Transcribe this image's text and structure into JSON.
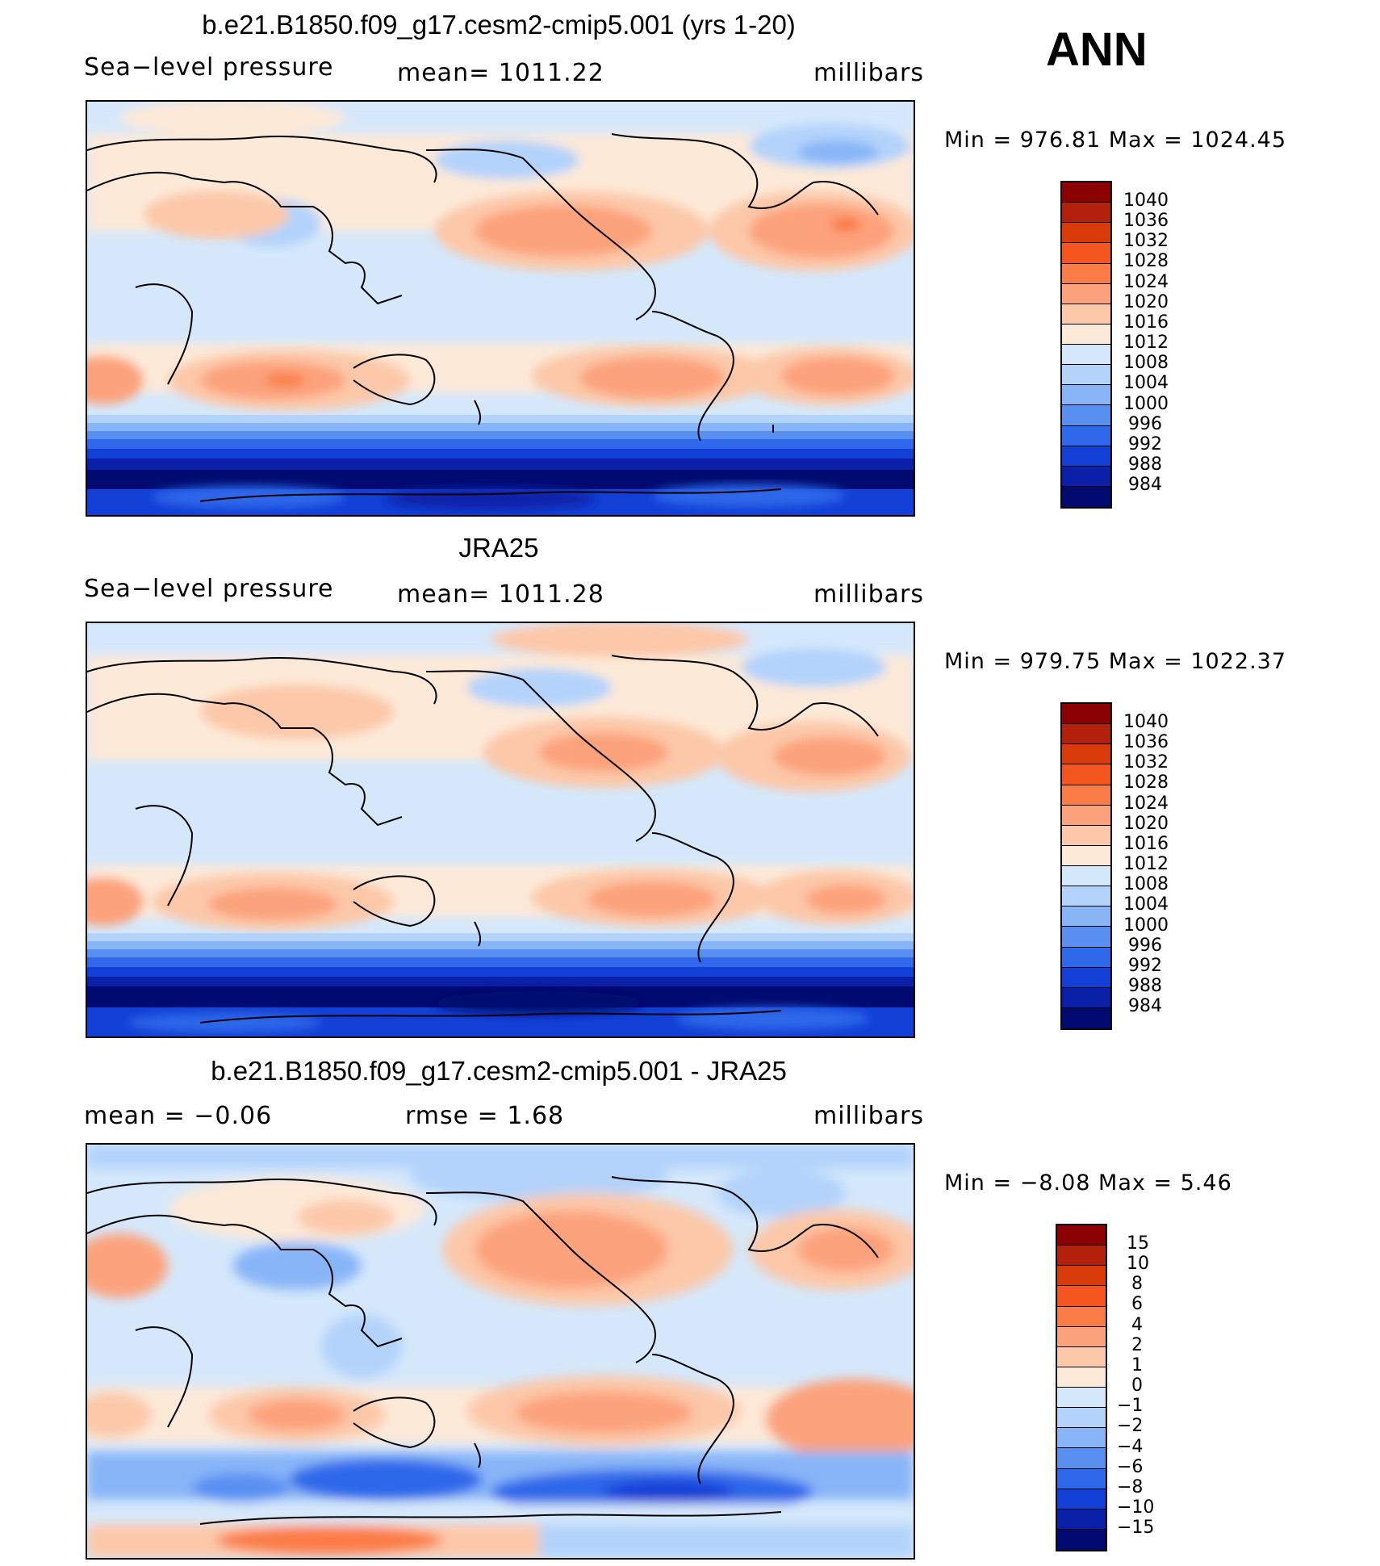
{
  "season": "ANN",
  "panels": [
    {
      "title": "b.e21.B1850.f09_g17.cesm2-cmip5.001 (yrs 1-20)",
      "left_label": "Sea−level pressure",
      "center_label": "mean=  1011.22",
      "right_label": "millibars",
      "min_max": "Min  =  976.81  Max  =  1024.45",
      "colorbar": {
        "levels": [
          "1040",
          "1036",
          "1032",
          "1028",
          "1024",
          "1020",
          "1016",
          "1012",
          "1008",
          "1004",
          "1000",
          "996",
          "992",
          "988",
          "984"
        ],
        "colors": [
          "#8b0000",
          "#b3200b",
          "#d93a0a",
          "#f5551e",
          "#fb7c46",
          "#fca27c",
          "#fcc8a9",
          "#fde9d8",
          "#d5e8fb",
          "#b3d3fb",
          "#88b5f8",
          "#5a8ff2",
          "#2f68ea",
          "#1240d6",
          "#0a20a8",
          "#000a70"
        ]
      }
    },
    {
      "title": "JRA25",
      "left_label": "Sea−level pressure",
      "center_label": "mean=  1011.28",
      "right_label": "millibars",
      "min_max": "Min  =  979.75  Max  =  1022.37",
      "colorbar": {
        "levels": [
          "1040",
          "1036",
          "1032",
          "1028",
          "1024",
          "1020",
          "1016",
          "1012",
          "1008",
          "1004",
          "1000",
          "996",
          "992",
          "988",
          "984"
        ],
        "colors": [
          "#8b0000",
          "#b3200b",
          "#d93a0a",
          "#f5551e",
          "#fb7c46",
          "#fca27c",
          "#fcc8a9",
          "#fde9d8",
          "#d5e8fb",
          "#b3d3fb",
          "#88b5f8",
          "#5a8ff2",
          "#2f68ea",
          "#1240d6",
          "#0a20a8",
          "#000a70"
        ]
      }
    },
    {
      "title": "b.e21.B1850.f09_g17.cesm2-cmip5.001 - JRA25",
      "left_label": "mean  =    −0.06",
      "center_label": "rmse  =     1.68",
      "right_label": "millibars",
      "min_max": "Min  =   −8.08  Max  =      5.46",
      "colorbar": {
        "levels": [
          "15",
          "10",
          "8",
          "6",
          "4",
          "2",
          "1",
          "0",
          "−1",
          "−2",
          "−4",
          "−6",
          "−8",
          "−10",
          "−15"
        ],
        "colors": [
          "#8b0000",
          "#b3200b",
          "#d93a0a",
          "#f5551e",
          "#fb7c46",
          "#fca27c",
          "#fcc8a9",
          "#fde9d8",
          "#d5e8fb",
          "#b3d3fb",
          "#88b5f8",
          "#5a8ff2",
          "#2f68ea",
          "#1240d6",
          "#0a20a8",
          "#000a70"
        ]
      }
    }
  ]
}
